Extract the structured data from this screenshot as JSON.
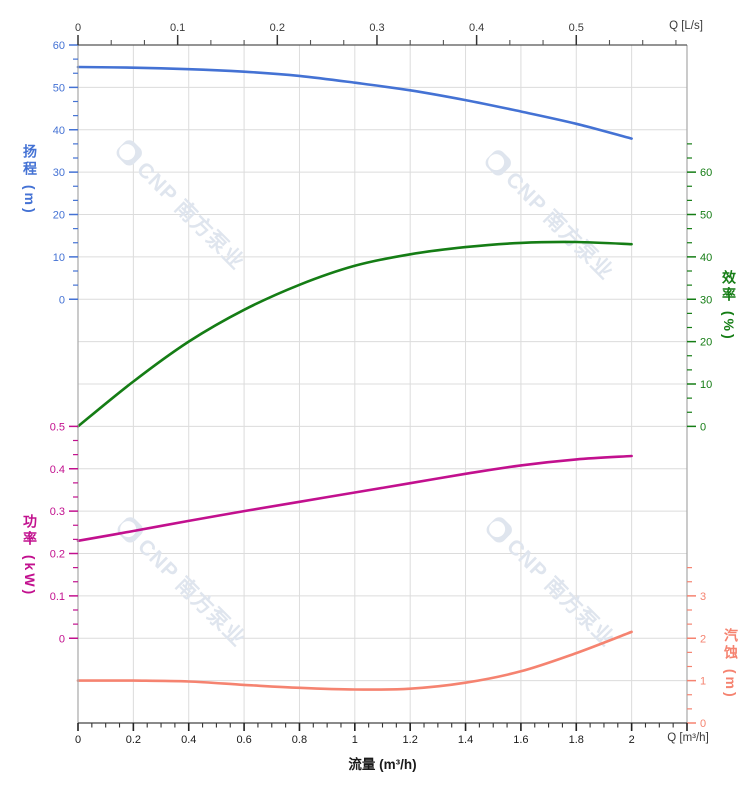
{
  "watermark": {
    "text": "CNP 南方泵业",
    "color": "#dfe5ee",
    "count": 4
  },
  "chart_data": {
    "type": "line",
    "title": "",
    "x_label": "流量 (m³/h)",
    "x_m3h": [
      0,
      0.2,
      0.4,
      0.6,
      0.8,
      1.0,
      1.2,
      1.4,
      1.6,
      1.8,
      2.0
    ],
    "series": [
      {
        "name": "扬程",
        "axis": "head",
        "unit": "m",
        "color": "#4472d4",
        "values": [
          54.8,
          54.65,
          54.3,
          53.7,
          52.7,
          51.1,
          49.3,
          47.0,
          44.3,
          41.4,
          37.9
        ]
      },
      {
        "name": "效率",
        "axis": "eff",
        "unit": "%",
        "color": "#157d15",
        "values": [
          0,
          10.6,
          20.0,
          27.5,
          33.4,
          37.9,
          40.6,
          42.3,
          43.3,
          43.5,
          43.0
        ]
      },
      {
        "name": "功率",
        "axis": "power",
        "unit": "kW",
        "color": "#c2108e",
        "values": [
          0.23,
          0.253,
          0.277,
          0.3,
          0.322,
          0.344,
          0.366,
          0.388,
          0.408,
          0.422,
          0.43
        ]
      },
      {
        "name": "汽蚀",
        "axis": "npsh",
        "unit": "m",
        "color": "#f58370",
        "values": [
          1.0,
          1.0,
          0.98,
          0.9,
          0.83,
          0.79,
          0.81,
          0.95,
          1.22,
          1.65,
          2.15
        ]
      }
    ],
    "axes": {
      "top": {
        "unit_label": "Q [L/s]",
        "color": "#3a3a3a",
        "tick_values": [
          0,
          0.1,
          0.2,
          0.3,
          0.4,
          0.5
        ],
        "tick_labels": [
          "0",
          "0.1",
          "0.2",
          "0.3",
          "0.4",
          "0.5"
        ],
        "range": [
          0,
          0.611
        ]
      },
      "bottom": {
        "title": "流量 (m³/h)",
        "unit_label": "Q [m³/h]",
        "color": "#1a1a1a",
        "tick_values": [
          0,
          0.2,
          0.4,
          0.6,
          0.8,
          1,
          1.2,
          1.4,
          1.6,
          1.8,
          2
        ],
        "tick_labels": [
          "0",
          "0.2",
          "0.4",
          "0.6",
          "0.8",
          "1",
          "1.2",
          "1.4",
          "1.6",
          "1.8",
          "2"
        ],
        "range": [
          0,
          2.2
        ]
      },
      "head": {
        "title": "扬程 (m)",
        "color": "#4472d4",
        "tick_values": [
          60,
          50,
          40,
          30,
          20,
          10,
          0
        ],
        "tick_labels": [
          "60",
          "50",
          "40",
          "30",
          "20",
          "10",
          "0"
        ],
        "range": [
          0,
          60
        ]
      },
      "eff": {
        "title": "效率 (%)",
        "color": "#157d15",
        "tick_values": [
          60,
          50,
          40,
          30,
          20,
          10,
          0
        ],
        "tick_labels": [
          "60",
          "50",
          "40",
          "30",
          "20",
          "10",
          "0"
        ],
        "range": [
          0,
          60
        ]
      },
      "power": {
        "title": "功率 (kW)",
        "color": "#c2108e",
        "tick_values": [
          0.5,
          0.4,
          0.3,
          0.2,
          0.1,
          0
        ],
        "tick_labels": [
          "0.5",
          "0.4",
          "0.3",
          "0.2",
          "0.1",
          "0"
        ],
        "range": [
          0,
          0.5
        ]
      },
      "npsh": {
        "title": "汽蚀 (m)",
        "color": "#f58370",
        "tick_values": [
          3,
          2,
          1,
          0
        ],
        "tick_labels": [
          "3",
          "2",
          "1",
          "0"
        ],
        "range": [
          0,
          3
        ]
      }
    },
    "grid": true,
    "grid_color": "#dcdcdc"
  }
}
